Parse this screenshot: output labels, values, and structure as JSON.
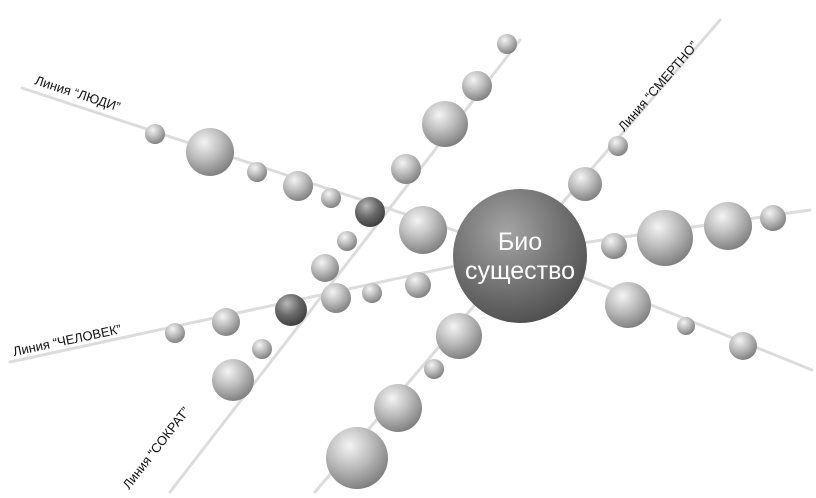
{
  "center": {
    "label_line1": "Био",
    "label_line2": "существо"
  },
  "lines": [
    {
      "key": "people",
      "label": "Линия “ЛЮДИ”"
    },
    {
      "key": "human",
      "label": "Линия “ЧЕЛОВЕК”"
    },
    {
      "key": "socrates",
      "label": "Линия “СОКРАТ”"
    },
    {
      "key": "mortal",
      "label": "Линия “СМЕРТНО”"
    }
  ],
  "colors": {
    "background": "#ffffff",
    "line": "#dcdcdc",
    "sphere_light": "#f4f4f4",
    "sphere_mid": "#a8a8a8",
    "sphere_dark": "#6a6a6a",
    "center_light": "#9a9a9a",
    "center_dark": "#4e4e4e",
    "text": "#111111",
    "center_text": "#ffffff"
  }
}
